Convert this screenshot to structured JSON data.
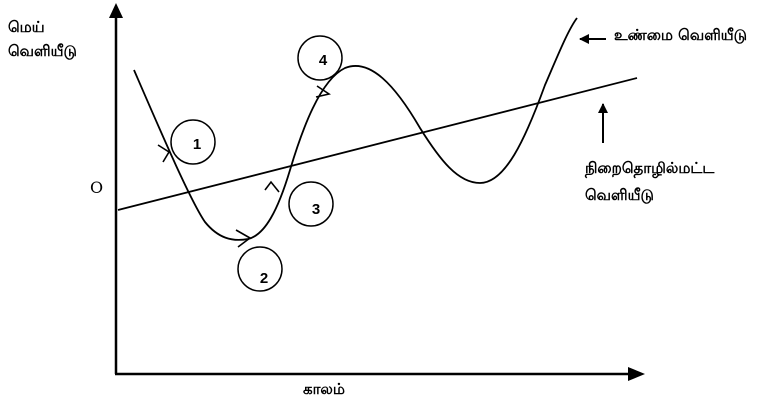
{
  "colors": {
    "ink": "#000000",
    "background": "#ffffff"
  },
  "labels": {
    "y_axis_line1": "மெய்",
    "y_axis_line2": "வெளியீடு",
    "origin": "O",
    "x_axis": "காலம்",
    "actual_output": "உண்மை வெளியீடு",
    "trend_line1": "நிறைதொழில்மட்ட",
    "trend_line2": "வெளியீடு"
  },
  "phases": [
    {
      "number": "1"
    },
    {
      "number": "2"
    },
    {
      "number": "3"
    },
    {
      "number": "4"
    }
  ]
}
